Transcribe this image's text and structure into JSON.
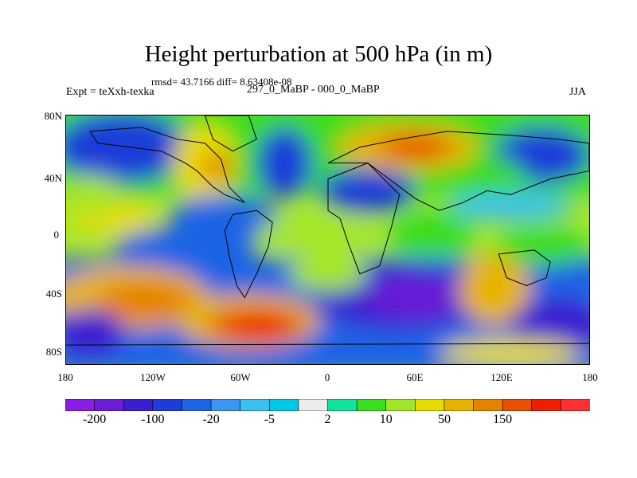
{
  "title": "Height perturbation at 500 hPa (in m)",
  "stats": "rmsd= 43.7166 diff= 8.63408e-08",
  "left_label": "Expt = teXxh-texka",
  "center_label": "297_0_MaBP - 000_0_MaBP",
  "right_label": "JJA",
  "map": {
    "projection": "cylindrical-equidistant",
    "lat_ticks": [
      "80N",
      "40N",
      "0",
      "40S",
      "80S"
    ],
    "lon_ticks": [
      "180",
      "120W",
      "60W",
      "0",
      "60E",
      "120E",
      "180"
    ],
    "lat_range": [
      -90,
      90
    ],
    "lon_range": [
      -180,
      180
    ],
    "field_features": [
      {
        "name": "north-pacific-low",
        "lon": 170,
        "lat": 55,
        "value": -100
      },
      {
        "name": "north-america-high",
        "lon": -100,
        "lat": 45,
        "value": 50
      },
      {
        "name": "central-asia-high",
        "lon": 60,
        "lat": 60,
        "value": 150
      },
      {
        "name": "southern-ocean-low",
        "lon": 40,
        "lat": -55,
        "value": -200
      },
      {
        "name": "south-atlantic-high",
        "lon": -40,
        "lat": -65,
        "value": 150
      },
      {
        "name": "south-pacific-high",
        "lon": -150,
        "lat": -45,
        "value": 100
      }
    ]
  },
  "colorbar": {
    "colors": [
      "#8a1ee6",
      "#6a1fd6",
      "#3a1fd0",
      "#1e3cd8",
      "#1e64e6",
      "#3a96f0",
      "#3cc0f0",
      "#00c8e6",
      "#ececec",
      "#12e39a",
      "#3cdc1e",
      "#a0e628",
      "#e6dc00",
      "#e6b400",
      "#e68200",
      "#e65000",
      "#f01e00",
      "#ff3232"
    ],
    "labels": [
      "-200",
      "-100",
      "-20",
      "-5",
      "2",
      "10",
      "50",
      "150"
    ]
  }
}
